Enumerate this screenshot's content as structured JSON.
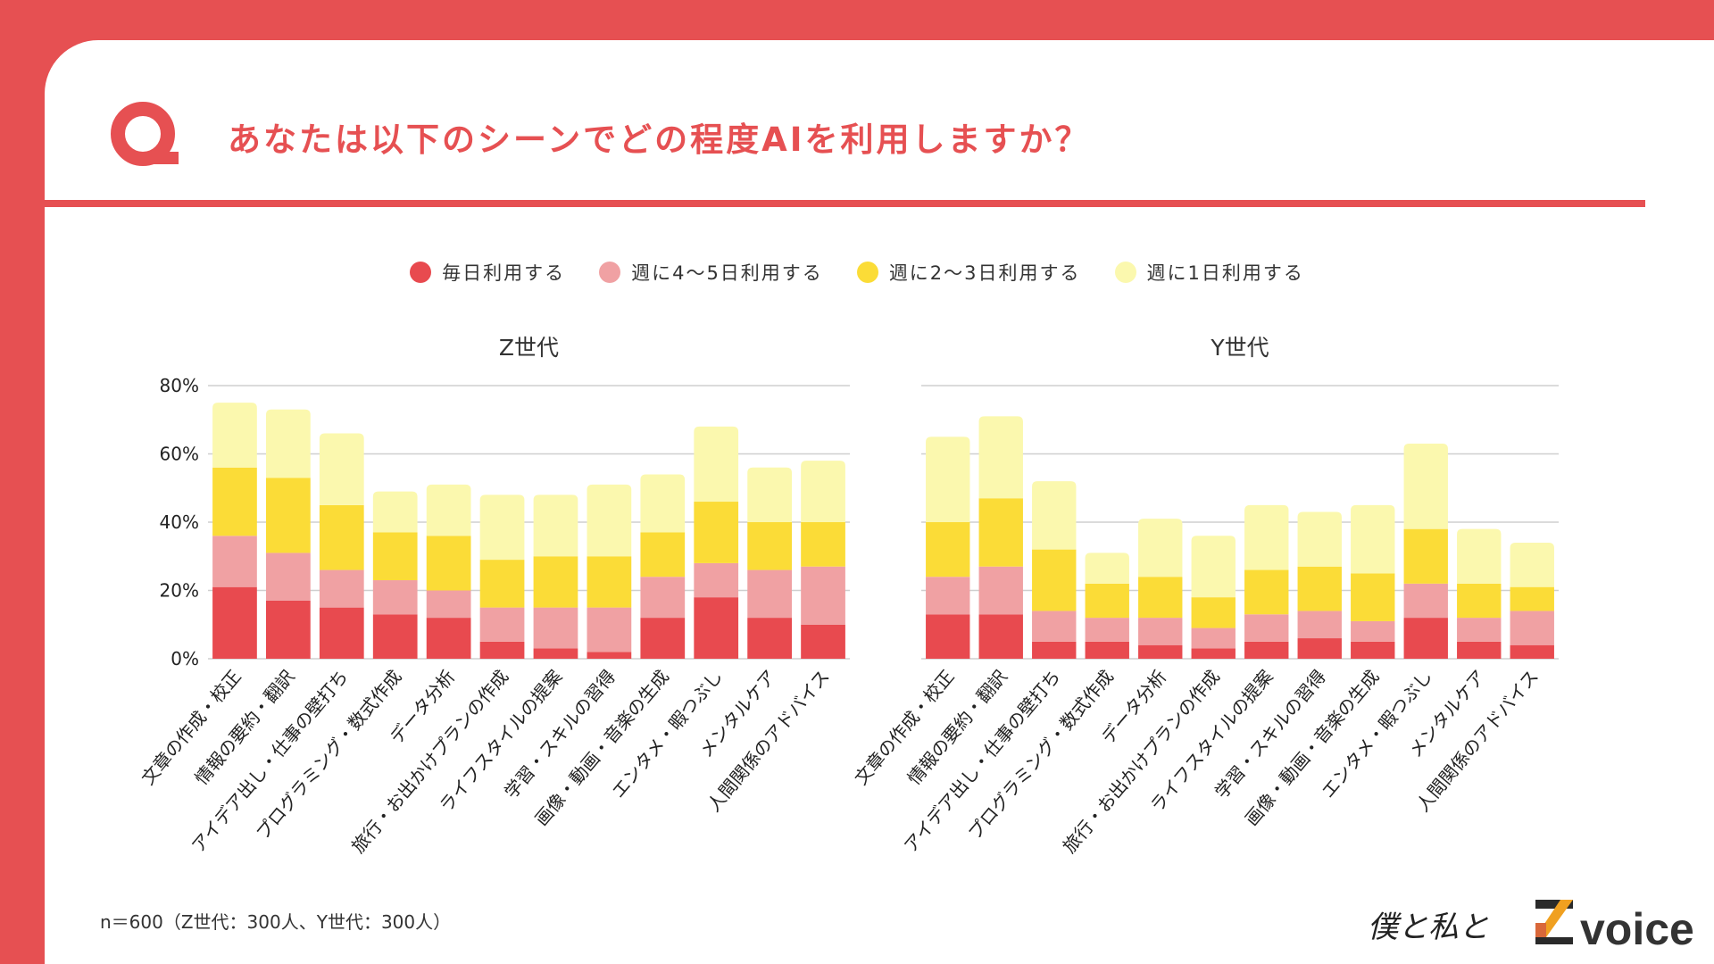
{
  "header": {
    "q_icon": "q-letter-icon",
    "title": "あなたは以下のシーンでどの程度AIを利用しますか？"
  },
  "colors": {
    "brand": "#e65052",
    "daily": "#e84a4f",
    "w45": "#f0a1a3",
    "w23": "#fbdc37",
    "w1": "#fbf8ae"
  },
  "legend": [
    {
      "label": "毎日利用する",
      "color": "#e84a4f"
    },
    {
      "label": "週に4〜5日利用する",
      "color": "#f0a1a3"
    },
    {
      "label": "週に2〜3日利用する",
      "color": "#fbdc37"
    },
    {
      "label": "週に1日利用する",
      "color": "#fbf8ae"
    }
  ],
  "chart_data": [
    {
      "type": "bar",
      "stacked": true,
      "title": "Z世代",
      "ylim": [
        0,
        80
      ],
      "yticks": [
        "0%",
        "20%",
        "40%",
        "60%",
        "80%"
      ],
      "grid": true,
      "legend_position": "top",
      "categories": [
        "文章の作成・校正",
        "情報の要約・翻訳",
        "アイデア出し・仕事の壁打ち",
        "プログラミング・数式作成",
        "データ分析",
        "旅行・お出かけプランの作成",
        "ライフスタイルの提案",
        "学習・スキルの習得",
        "画像・動画・音楽の生成",
        "エンタメ・暇つぶし",
        "メンタルケア",
        "人間関係のアドバイス"
      ],
      "series": [
        {
          "name": "毎日利用する",
          "values": [
            21,
            17,
            15,
            13,
            12,
            5,
            3,
            2,
            12,
            18,
            12,
            10
          ]
        },
        {
          "name": "週に4〜5日利用する",
          "values": [
            15,
            14,
            11,
            10,
            8,
            10,
            12,
            13,
            12,
            10,
            14,
            17
          ]
        },
        {
          "name": "週に2〜3日利用する",
          "values": [
            20,
            22,
            19,
            14,
            16,
            14,
            15,
            15,
            13,
            18,
            14,
            13
          ]
        },
        {
          "name": "週に1日利用する",
          "values": [
            19,
            20,
            21,
            12,
            15,
            19,
            18,
            21,
            17,
            22,
            16,
            18
          ]
        }
      ]
    },
    {
      "type": "bar",
      "stacked": true,
      "title": "Y世代",
      "ylim": [
        0,
        80
      ],
      "grid": true,
      "categories": [
        "文章の作成・校正",
        "情報の要約・翻訳",
        "アイデア出し・仕事の壁打ち",
        "プログラミング・数式作成",
        "データ分析",
        "旅行・お出かけプランの作成",
        "ライフスタイルの提案",
        "学習・スキルの習得",
        "画像・動画・音楽の生成",
        "エンタメ・暇つぶし",
        "メンタルケア",
        "人間関係のアドバイス"
      ],
      "series": [
        {
          "name": "毎日利用する",
          "values": [
            13,
            13,
            5,
            5,
            4,
            3,
            5,
            6,
            5,
            12,
            5,
            4
          ]
        },
        {
          "name": "週に4〜5日利用する",
          "values": [
            11,
            14,
            9,
            7,
            8,
            6,
            8,
            8,
            6,
            10,
            7,
            10
          ]
        },
        {
          "name": "週に2〜3日利用する",
          "values": [
            16,
            20,
            18,
            10,
            12,
            9,
            13,
            13,
            14,
            16,
            10,
            7
          ]
        },
        {
          "name": "週に1日利用する",
          "values": [
            25,
            24,
            20,
            9,
            17,
            18,
            19,
            16,
            20,
            25,
            16,
            13
          ]
        }
      ]
    }
  ],
  "footer": {
    "note": "n＝600（Z世代：300人、Y世代：300人）"
  },
  "logo": {
    "brand_text": "voice",
    "handwriting": "僕と私と",
    "mark": "Z"
  }
}
